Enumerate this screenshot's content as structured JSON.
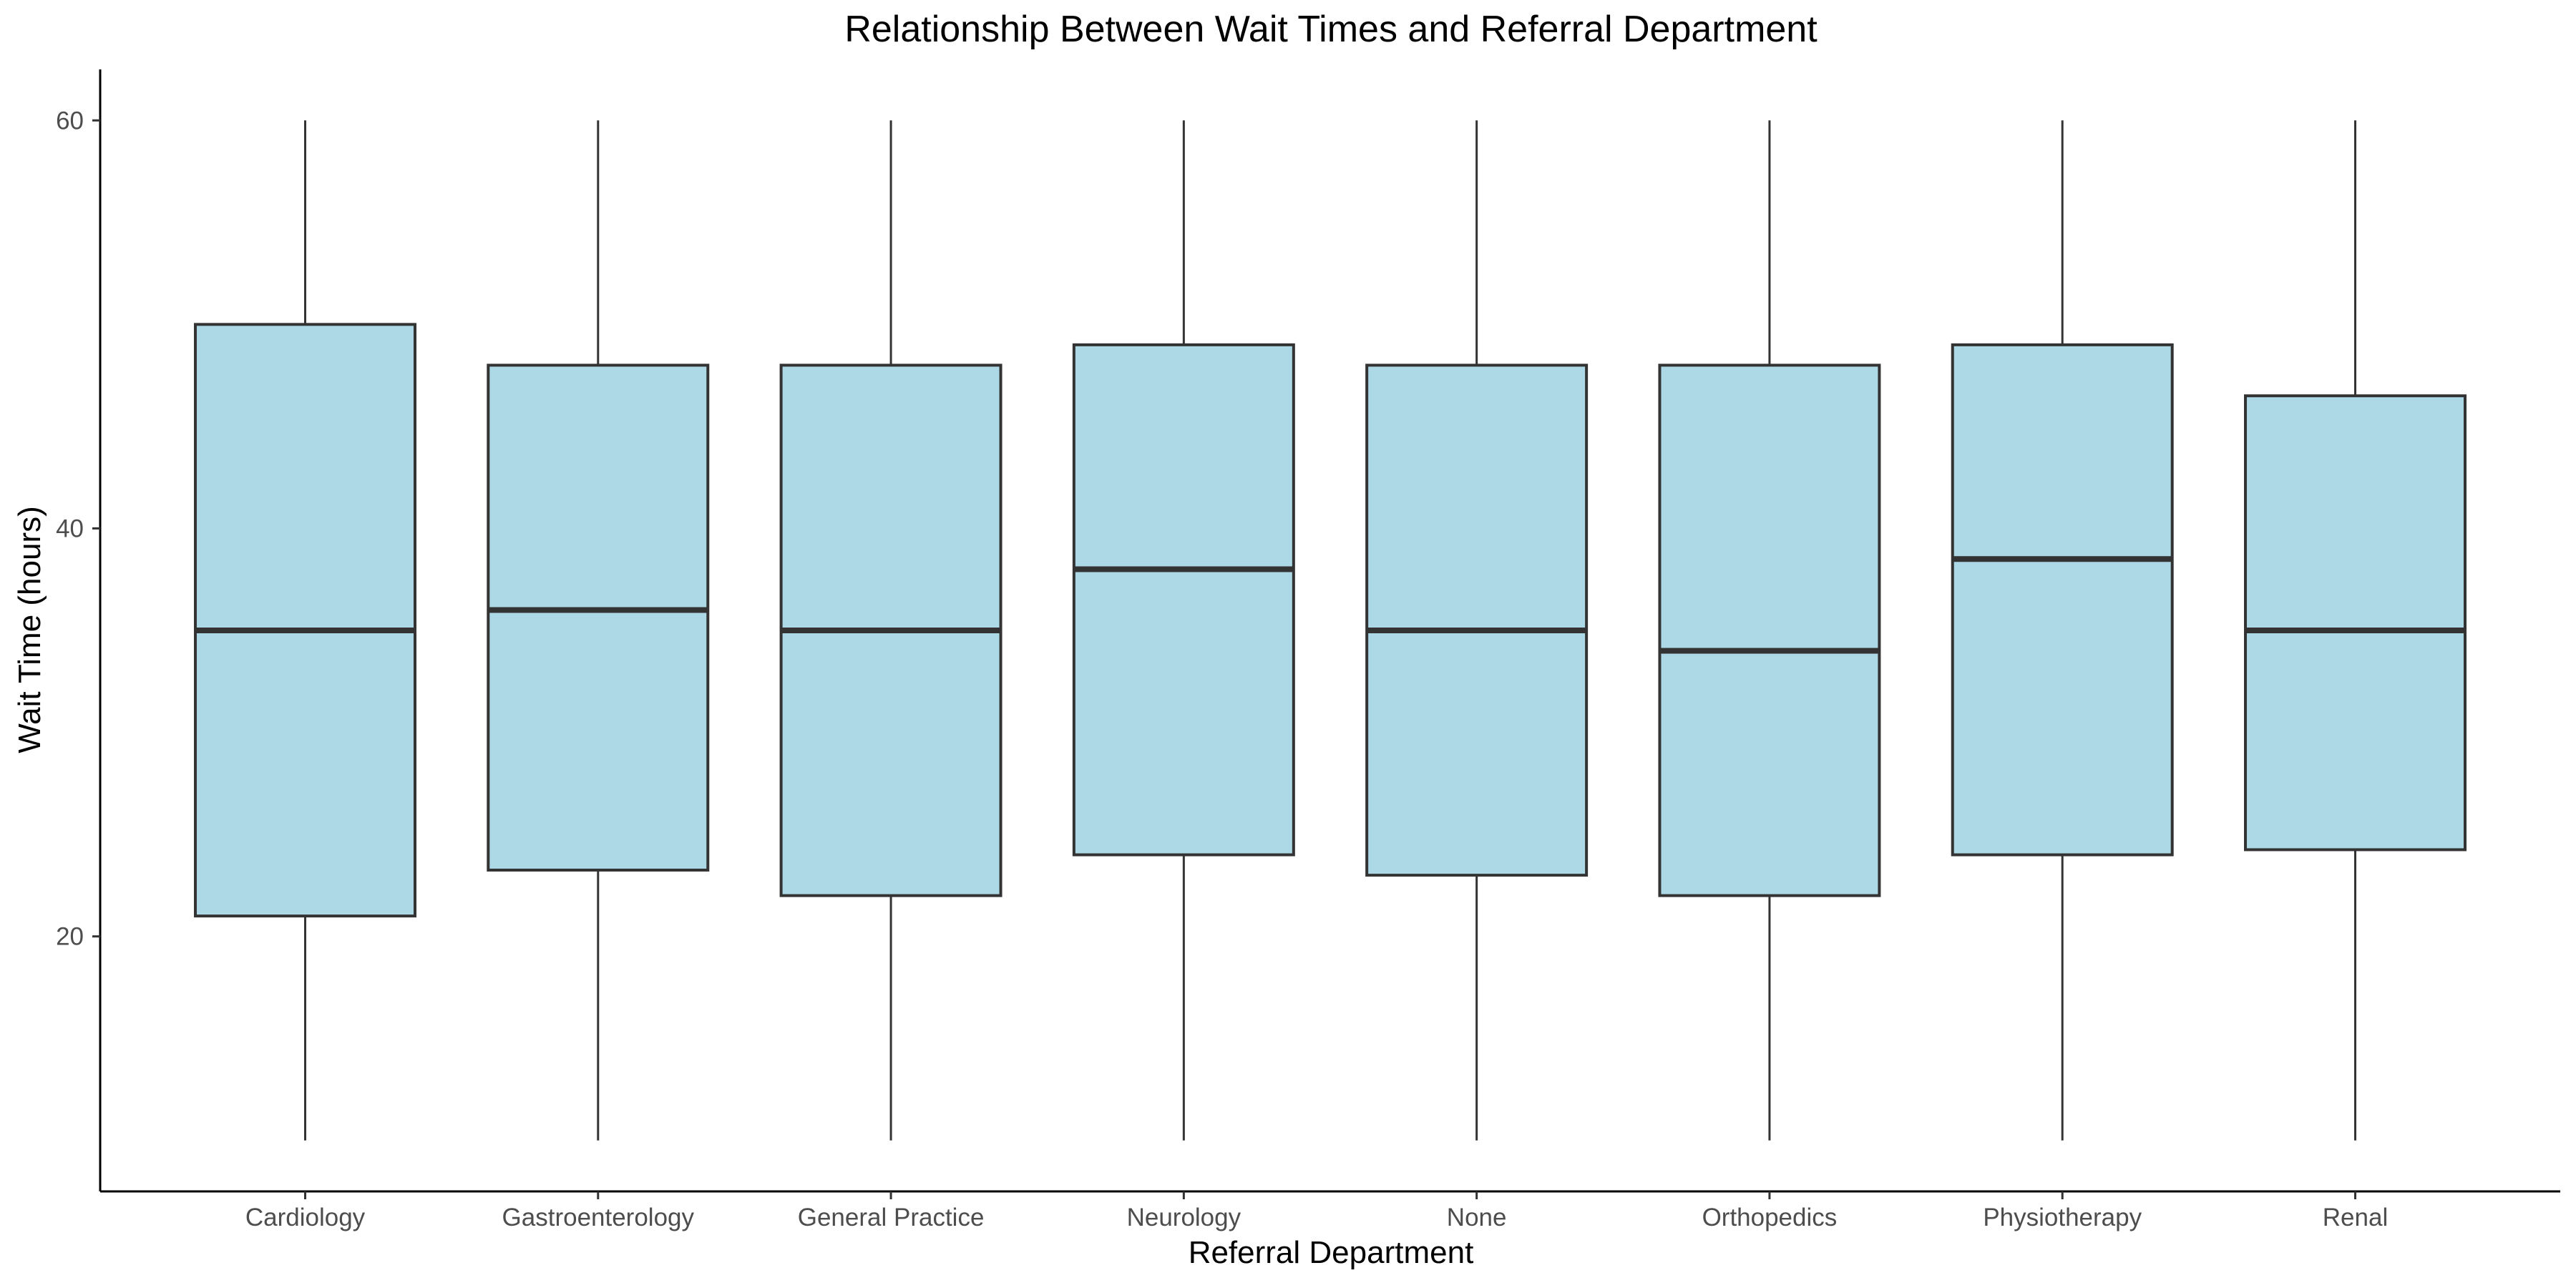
{
  "chart_data": {
    "type": "box",
    "title": "Relationship Between Wait Times and Referral Department",
    "xlabel": "Referral Department",
    "ylabel": "Wait Time (hours)",
    "ylim": [
      7.5,
      62.5
    ],
    "yticks": [
      20,
      40,
      60
    ],
    "grid": false,
    "legend": "none",
    "box_fill": "#ADD8E6",
    "line_color": "#333333",
    "categories": [
      "Cardiology",
      "Gastroenterology",
      "General Practice",
      "Neurology",
      "None",
      "Orthopedics",
      "Physiotherapy",
      "Renal"
    ],
    "boxes": [
      {
        "category": "Cardiology",
        "min": 10,
        "q1": 21,
        "median": 35,
        "q3": 50,
        "max": 60
      },
      {
        "category": "Gastroenterology",
        "min": 10,
        "q1": 23.25,
        "median": 36,
        "q3": 48,
        "max": 60
      },
      {
        "category": "General Practice",
        "min": 10,
        "q1": 22,
        "median": 35,
        "q3": 48,
        "max": 60
      },
      {
        "category": "Neurology",
        "min": 10,
        "q1": 24,
        "median": 38,
        "q3": 49,
        "max": 60
      },
      {
        "category": "None",
        "min": 10,
        "q1": 23,
        "median": 35,
        "q3": 48,
        "max": 60
      },
      {
        "category": "Orthopedics",
        "min": 10,
        "q1": 22,
        "median": 34,
        "q3": 48,
        "max": 60
      },
      {
        "category": "Physiotherapy",
        "min": 10,
        "q1": 24,
        "median": 38.5,
        "q3": 49,
        "max": 60
      },
      {
        "category": "Renal",
        "min": 10,
        "q1": 24.25,
        "median": 35,
        "q3": 46.5,
        "max": 60
      }
    ]
  }
}
